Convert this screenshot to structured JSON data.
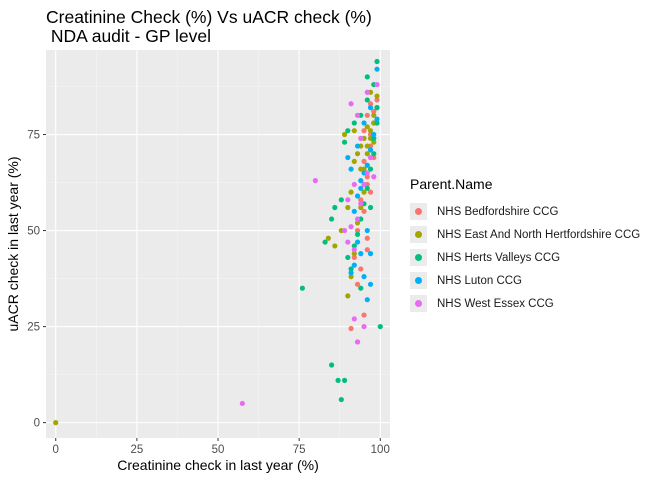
{
  "chart_data": {
    "type": "scatter",
    "title": "Creatinine Check (%) Vs uACR check (%)\n NDA audit - GP level",
    "xlabel": "Creatinine check in last year (%)",
    "ylabel": "uACR check in last year (%)",
    "xlim": [
      -3,
      103
    ],
    "ylim": [
      -4,
      97
    ],
    "x_ticks": [
      0,
      25,
      50,
      75,
      100
    ],
    "y_ticks": [
      0,
      25,
      50,
      75
    ],
    "grid": true,
    "legend_title": "Parent.Name",
    "legend_position": "right",
    "series": [
      {
        "name": "NHS Bedfordshire CCG",
        "color": "#F8766D",
        "points": [
          [
            91,
            24.5
          ],
          [
            93,
            21
          ],
          [
            95,
            28
          ],
          [
            94,
            40
          ],
          [
            96,
            45
          ],
          [
            93,
            50
          ],
          [
            95,
            55
          ],
          [
            97,
            60
          ],
          [
            96,
            64
          ],
          [
            98,
            69
          ],
          [
            97,
            72
          ],
          [
            95,
            76
          ],
          [
            98,
            78
          ],
          [
            96,
            80
          ],
          [
            97,
            83
          ],
          [
            99,
            84
          ],
          [
            94,
            58
          ],
          [
            96,
            62
          ],
          [
            92,
            43
          ],
          [
            95,
            68
          ],
          [
            97,
            75
          ],
          [
            98,
            81
          ],
          [
            93,
            36
          ],
          [
            96,
            48
          ]
        ]
      },
      {
        "name": "NHS East And North Hertfordshire CCG",
        "color": "#A3A500",
        "points": [
          [
            0,
            0
          ],
          [
            84,
            48
          ],
          [
            86,
            46
          ],
          [
            88,
            50
          ],
          [
            90,
            33
          ],
          [
            91,
            38
          ],
          [
            92,
            44
          ],
          [
            93,
            52
          ],
          [
            94,
            56
          ],
          [
            95,
            60
          ],
          [
            95,
            66
          ],
          [
            96,
            70
          ],
          [
            96,
            72
          ],
          [
            97,
            74
          ],
          [
            97,
            76
          ],
          [
            98,
            78
          ],
          [
            98,
            80
          ],
          [
            99,
            82
          ],
          [
            99,
            85
          ],
          [
            97,
            86
          ],
          [
            92,
            68
          ],
          [
            93,
            70
          ],
          [
            94,
            72
          ],
          [
            95,
            74
          ],
          [
            96,
            77
          ],
          [
            90,
            56
          ],
          [
            91,
            60
          ],
          [
            98,
            73
          ],
          [
            89,
            75
          ],
          [
            92,
            76
          ],
          [
            94,
            66
          ]
        ]
      },
      {
        "name": "NHS Herts Valleys CCG",
        "color": "#00BF7D",
        "points": [
          [
            76,
            35
          ],
          [
            88,
            6
          ],
          [
            87,
            11
          ],
          [
            85,
            15
          ],
          [
            89,
            11
          ],
          [
            83,
            47
          ],
          [
            85,
            53
          ],
          [
            86,
            56
          ],
          [
            88,
            58
          ],
          [
            90,
            43
          ],
          [
            91,
            40
          ],
          [
            92,
            46
          ],
          [
            93,
            49
          ],
          [
            94,
            53
          ],
          [
            95,
            57
          ],
          [
            96,
            61
          ],
          [
            97,
            66
          ],
          [
            98,
            70
          ],
          [
            98,
            74
          ],
          [
            99,
            78
          ],
          [
            99,
            82
          ],
          [
            98,
            88
          ],
          [
            99,
            94
          ],
          [
            96,
            90
          ],
          [
            89,
            73
          ],
          [
            90,
            76
          ],
          [
            92,
            78
          ],
          [
            94,
            80
          ],
          [
            96,
            84
          ],
          [
            100,
            25
          ],
          [
            94,
            35
          ],
          [
            97,
            56
          ]
        ]
      },
      {
        "name": "NHS Luton CCG",
        "color": "#00B0F6",
        "points": [
          [
            91,
            39
          ],
          [
            92,
            41
          ],
          [
            93,
            47
          ],
          [
            94,
            44
          ],
          [
            95,
            38
          ],
          [
            96,
            32
          ],
          [
            97,
            36
          ],
          [
            92,
            55
          ],
          [
            93,
            59
          ],
          [
            94,
            63
          ],
          [
            95,
            65
          ],
          [
            96,
            67
          ],
          [
            97,
            71
          ],
          [
            98,
            75
          ],
          [
            99,
            79
          ],
          [
            99,
            92
          ],
          [
            97,
            82
          ],
          [
            95,
            78
          ],
          [
            93,
            72
          ],
          [
            90,
            69
          ],
          [
            91,
            66
          ],
          [
            94,
            61
          ],
          [
            96,
            50
          ],
          [
            97,
            44
          ]
        ]
      },
      {
        "name": "NHS West Essex CCG",
        "color": "#E76BF3",
        "points": [
          [
            57.5,
            5
          ],
          [
            80,
            63
          ],
          [
            89,
            50
          ],
          [
            90,
            47
          ],
          [
            91,
            51
          ],
          [
            92,
            45
          ],
          [
            93,
            53
          ],
          [
            94,
            57
          ],
          [
            95,
            62
          ],
          [
            96,
            65
          ],
          [
            92,
            27
          ],
          [
            93,
            21
          ],
          [
            95,
            25
          ],
          [
            91,
            83
          ],
          [
            93,
            80
          ],
          [
            96,
            86
          ],
          [
            99,
            88
          ],
          [
            97,
            69
          ],
          [
            98,
            64
          ],
          [
            94,
            74
          ],
          [
            92,
            62
          ],
          [
            90,
            58
          ]
        ]
      }
    ]
  }
}
